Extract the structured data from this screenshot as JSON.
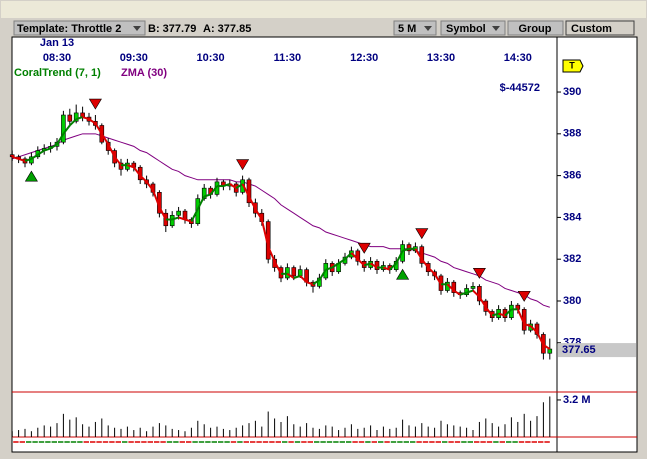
{
  "toolbar": {
    "template": "Template: Throttle 2",
    "bid": "B: 377.79",
    "ask": "A: 377.85",
    "interval": "5 M",
    "symbol": "Symbol",
    "group": "Group",
    "custom": "Custom"
  },
  "chart_data": {
    "type": "candlestick",
    "date_label": "Jan 13",
    "categories": [
      null,
      null,
      null,
      null,
      null,
      null,
      null,
      "08:30",
      null,
      null,
      null,
      null,
      null,
      null,
      null,
      null,
      null,
      null,
      null,
      "09:30",
      null,
      null,
      null,
      null,
      null,
      null,
      null,
      null,
      null,
      null,
      null,
      "10:30",
      null,
      null,
      null,
      null,
      null,
      null,
      null,
      null,
      null,
      null,
      null,
      "11:30",
      null,
      null,
      null,
      null,
      null,
      null,
      null,
      null,
      null,
      null,
      null,
      "12:30",
      null,
      null,
      null,
      null,
      null,
      null,
      null,
      null,
      null,
      null,
      null,
      "13:30",
      null,
      null,
      null,
      null,
      null,
      null,
      null,
      null,
      null,
      null,
      null,
      "14:30",
      null,
      null,
      null,
      null,
      null
    ],
    "ohlc": [
      [
        387.0,
        387.2,
        386.7,
        386.9
      ],
      [
        386.9,
        387.0,
        386.6,
        386.8
      ],
      [
        386.8,
        386.9,
        386.4,
        386.6
      ],
      [
        386.6,
        387.1,
        386.5,
        386.9
      ],
      [
        386.9,
        387.4,
        386.8,
        387.2
      ],
      [
        387.2,
        387.5,
        387.0,
        387.3
      ],
      [
        387.3,
        387.6,
        387.1,
        387.4
      ],
      [
        387.4,
        387.8,
        387.2,
        387.6
      ],
      [
        387.6,
        389.1,
        387.5,
        388.9
      ],
      [
        388.9,
        389.2,
        388.4,
        388.6
      ],
      [
        388.6,
        389.4,
        388.5,
        389.0
      ],
      [
        389.0,
        389.3,
        388.6,
        388.8
      ],
      [
        388.8,
        389.0,
        388.4,
        388.6
      ],
      [
        388.6,
        388.9,
        388.2,
        388.4
      ],
      [
        388.4,
        388.5,
        387.5,
        387.6
      ],
      [
        387.6,
        387.8,
        387.0,
        387.2
      ],
      [
        387.2,
        387.3,
        386.4,
        386.6
      ],
      [
        386.6,
        386.8,
        386.0,
        386.3
      ],
      [
        386.3,
        386.8,
        386.2,
        386.6
      ],
      [
        386.6,
        386.7,
        386.2,
        386.4
      ],
      [
        386.4,
        386.5,
        385.6,
        385.8
      ],
      [
        385.8,
        386.0,
        385.4,
        385.6
      ],
      [
        385.6,
        385.7,
        385.0,
        385.2
      ],
      [
        385.2,
        385.3,
        384.0,
        384.2
      ],
      [
        384.2,
        384.4,
        383.3,
        383.6
      ],
      [
        383.6,
        384.3,
        383.5,
        384.1
      ],
      [
        384.1,
        384.5,
        383.9,
        384.3
      ],
      [
        384.3,
        384.4,
        383.7,
        383.9
      ],
      [
        383.9,
        384.0,
        383.5,
        383.7
      ],
      [
        383.7,
        385.1,
        383.6,
        384.9
      ],
      [
        384.9,
        385.6,
        384.8,
        385.4
      ],
      [
        385.4,
        385.5,
        384.9,
        385.1
      ],
      [
        385.1,
        385.9,
        385.0,
        385.7
      ],
      [
        385.7,
        385.8,
        385.3,
        385.5
      ],
      [
        385.5,
        385.8,
        385.3,
        385.6
      ],
      [
        385.6,
        385.7,
        385.0,
        385.2
      ],
      [
        385.2,
        386.0,
        385.1,
        385.8
      ],
      [
        385.8,
        385.9,
        384.5,
        384.7
      ],
      [
        384.7,
        384.9,
        384.0,
        384.2
      ],
      [
        384.2,
        384.4,
        383.6,
        383.8
      ],
      [
        383.8,
        383.9,
        381.8,
        382.0
      ],
      [
        382.0,
        382.2,
        381.4,
        381.6
      ],
      [
        381.6,
        381.7,
        380.9,
        381.1
      ],
      [
        381.1,
        381.8,
        381.0,
        381.6
      ],
      [
        381.6,
        381.7,
        381.0,
        381.2
      ],
      [
        381.2,
        381.7,
        381.1,
        381.5
      ],
      [
        381.5,
        381.6,
        380.7,
        380.9
      ],
      [
        380.9,
        381.0,
        380.4,
        380.7
      ],
      [
        380.7,
        381.3,
        380.6,
        381.1
      ],
      [
        381.1,
        382.0,
        381.0,
        381.8
      ],
      [
        381.8,
        381.9,
        381.2,
        381.4
      ],
      [
        381.4,
        382.0,
        381.3,
        381.8
      ],
      [
        381.8,
        382.3,
        381.7,
        382.1
      ],
      [
        382.1,
        382.6,
        382.0,
        382.4
      ],
      [
        382.4,
        382.5,
        381.7,
        381.9
      ],
      [
        381.9,
        382.0,
        381.4,
        381.6
      ],
      [
        381.6,
        382.1,
        381.5,
        381.9
      ],
      [
        381.9,
        382.0,
        381.3,
        381.5
      ],
      [
        381.5,
        381.9,
        381.4,
        381.7
      ],
      [
        381.7,
        381.8,
        381.3,
        381.5
      ],
      [
        381.5,
        382.1,
        381.4,
        381.9
      ],
      [
        381.9,
        382.9,
        381.8,
        382.7
      ],
      [
        382.7,
        382.8,
        382.2,
        382.4
      ],
      [
        382.4,
        382.8,
        382.3,
        382.6
      ],
      [
        382.6,
        382.7,
        381.6,
        381.8
      ],
      [
        381.8,
        381.9,
        381.2,
        381.4
      ],
      [
        381.4,
        381.5,
        381.0,
        381.2
      ],
      [
        381.2,
        381.3,
        380.3,
        380.5
      ],
      [
        380.5,
        381.1,
        380.4,
        380.9
      ],
      [
        380.9,
        381.0,
        380.2,
        380.4
      ],
      [
        380.4,
        380.5,
        380.1,
        380.3
      ],
      [
        380.3,
        380.8,
        380.2,
        380.6
      ],
      [
        380.6,
        380.9,
        380.5,
        380.7
      ],
      [
        380.7,
        380.8,
        379.8,
        380.0
      ],
      [
        380.0,
        380.1,
        379.3,
        379.5
      ],
      [
        379.5,
        379.6,
        379.0,
        379.2
      ],
      [
        379.2,
        379.8,
        379.1,
        379.6
      ],
      [
        379.6,
        379.7,
        379.0,
        379.2
      ],
      [
        379.2,
        380.0,
        379.1,
        379.8
      ],
      [
        379.8,
        379.9,
        379.4,
        379.6
      ],
      [
        379.6,
        379.7,
        378.4,
        378.6
      ],
      [
        378.6,
        379.1,
        378.5,
        378.9
      ],
      [
        378.9,
        379.0,
        378.2,
        378.4
      ],
      [
        378.4,
        378.5,
        377.2,
        377.5
      ],
      [
        377.5,
        378.2,
        377.2,
        377.7
      ]
    ],
    "colors": {
      "up": "#00cc00",
      "down": "#dd0000"
    },
    "ylim": [
      375.74,
      391.15
    ],
    "yticks": [
      378,
      380,
      382,
      384,
      386,
      388,
      390
    ],
    "pnl_label": "$-44572",
    "last_price": 377.65,
    "marker": "T",
    "indicators": [
      {
        "name": "CoralTrend (7, 1)",
        "color": "#008000",
        "down_color": "#dd0000",
        "values": [
          386.9,
          386.8,
          386.7,
          386.8,
          387.0,
          387.2,
          387.3,
          387.5,
          388.0,
          388.4,
          388.7,
          388.8,
          388.7,
          388.5,
          388.0,
          387.5,
          386.9,
          386.5,
          386.5,
          386.4,
          386.0,
          385.7,
          385.3,
          384.5,
          383.9,
          383.9,
          384.0,
          383.9,
          383.8,
          384.4,
          385.0,
          385.1,
          385.5,
          385.5,
          385.6,
          385.4,
          385.6,
          385.0,
          384.4,
          383.9,
          382.6,
          381.9,
          381.3,
          381.3,
          381.1,
          381.2,
          380.9,
          380.8,
          381.0,
          381.5,
          381.6,
          381.8,
          382.0,
          382.3,
          382.0,
          381.7,
          381.8,
          381.6,
          381.6,
          381.5,
          381.8,
          382.4,
          382.5,
          382.5,
          382.0,
          381.6,
          381.3,
          380.8,
          380.8,
          380.5,
          380.3,
          380.4,
          380.5,
          380.2,
          379.7,
          379.3,
          379.4,
          379.3,
          379.6,
          379.6,
          378.9,
          378.8,
          378.5,
          377.9,
          377.7
        ]
      },
      {
        "name": "ZMA (30)",
        "color": "#800080",
        "values": [
          386.8,
          386.9,
          387.0,
          387.1,
          387.2,
          387.3,
          387.4,
          387.5,
          387.7,
          387.8,
          387.9,
          388.0,
          388.0,
          388.0,
          387.9,
          387.8,
          387.7,
          387.6,
          387.5,
          387.4,
          387.2,
          387.1,
          386.9,
          386.7,
          386.5,
          386.3,
          386.2,
          386.0,
          385.9,
          385.8,
          385.8,
          385.8,
          385.8,
          385.8,
          385.8,
          385.7,
          385.7,
          385.6,
          385.5,
          385.3,
          385.1,
          384.9,
          384.6,
          384.4,
          384.2,
          384.0,
          383.8,
          383.6,
          383.5,
          383.3,
          383.2,
          383.1,
          383.0,
          382.9,
          382.8,
          382.7,
          382.6,
          382.6,
          382.6,
          382.5,
          382.5,
          382.5,
          382.5,
          382.4,
          382.3,
          382.2,
          382.1,
          381.9,
          381.8,
          381.6,
          381.5,
          381.4,
          381.3,
          381.2,
          381.0,
          380.9,
          380.8,
          380.6,
          380.5,
          380.4,
          380.3,
          380.1,
          380.0,
          379.8,
          379.7
        ]
      }
    ],
    "buy_signals": [
      3,
      61
    ],
    "sell_signals": [
      13,
      36,
      55,
      64,
      73,
      80
    ],
    "volume": {
      "color": "#000000",
      "ylim": [
        0,
        3.8
      ],
      "yticks": [
        {
          "value": 3.2,
          "label": "3.2 M"
        }
      ],
      "values": [
        0.5,
        0.6,
        0.7,
        0.5,
        0.8,
        1.0,
        0.9,
        1.2,
        2.0,
        1.5,
        1.7,
        1.1,
        0.9,
        1.3,
        1.6,
        1.0,
        0.8,
        0.7,
        0.9,
        0.6,
        0.8,
        0.5,
        0.9,
        1.2,
        1.0,
        0.7,
        0.6,
        0.5,
        0.8,
        1.4,
        1.1,
        0.8,
        0.9,
        0.7,
        0.6,
        0.8,
        1.0,
        1.2,
        1.4,
        0.9,
        2.2,
        1.6,
        1.3,
        1.8,
        1.1,
        0.9,
        1.2,
        0.8,
        0.7,
        1.0,
        0.9,
        0.6,
        0.8,
        1.1,
        0.7,
        0.8,
        1.0,
        0.6,
        0.9,
        0.7,
        0.8,
        1.5,
        1.0,
        0.9,
        1.2,
        0.9,
        0.8,
        1.4,
        1.1,
        1.0,
        0.9,
        0.8,
        0.6,
        1.3,
        1.6,
        1.2,
        0.9,
        1.1,
        1.7,
        1.3,
        2.0,
        1.4,
        1.8,
        3.0,
        3.5
      ]
    }
  }
}
